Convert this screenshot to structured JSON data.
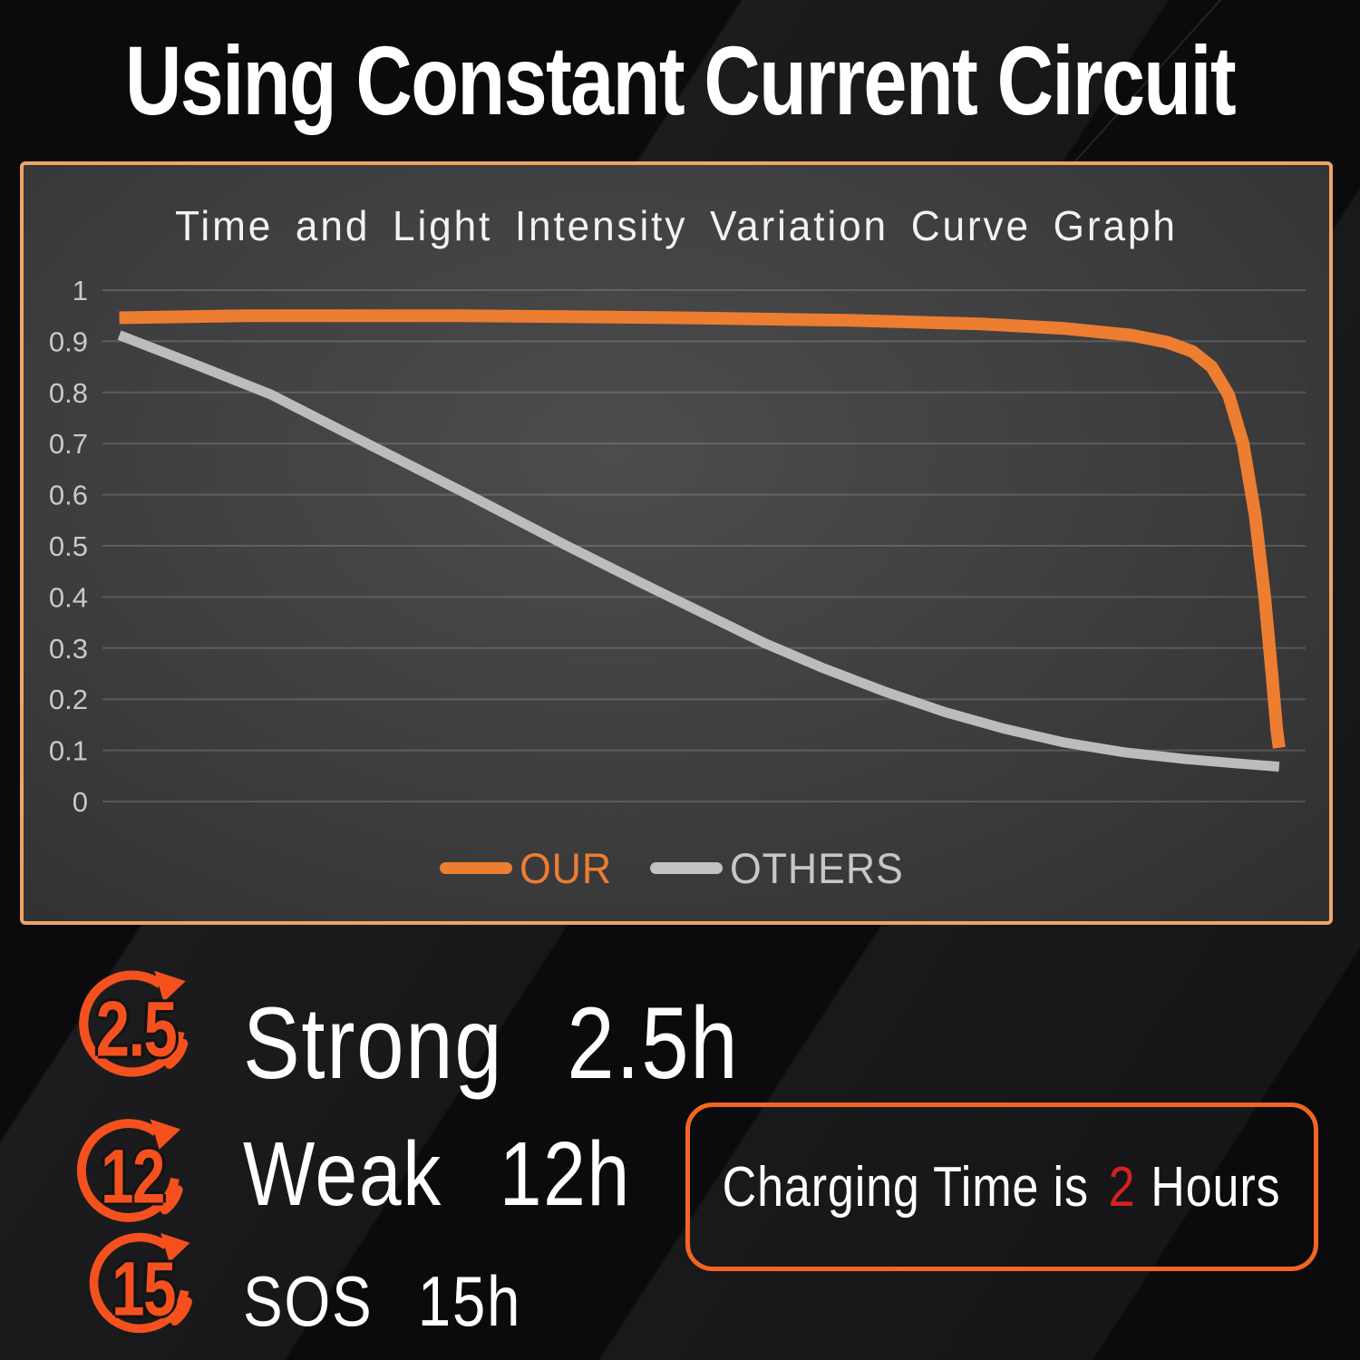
{
  "page": {
    "title": "Using Constant Current Circuit"
  },
  "chart": {
    "title": "Time and Light Intensity Variation Curve Graph",
    "legend": [
      {
        "label": "OUR",
        "color": "#ed7d31"
      },
      {
        "label": "OTHERS",
        "color": "#c2c2c2"
      }
    ]
  },
  "chart_data": {
    "type": "line",
    "title": "Time and Light Intensity Variation Curve Graph",
    "xlabel": "",
    "ylabel": "",
    "ylim": [
      0,
      1
    ],
    "yticks": [
      "1",
      "0.9",
      "0.8",
      "0.7",
      "0.6",
      "0.5",
      "0.4",
      "0.3",
      "0.2",
      "0.1",
      "0"
    ],
    "ytick_values": [
      1,
      0.9,
      0.8,
      0.7,
      0.6,
      0.5,
      0.4,
      0.3,
      0.2,
      0.1,
      0
    ],
    "grid": true,
    "legend_position": "bottom",
    "x_axis_note": "time axis unlabeled; x given as fraction 0-1 of run time",
    "series": [
      {
        "name": "OUR",
        "color": "#ed7d31",
        "line_width": 14,
        "points": [
          [
            0.014,
            0.946
          ],
          [
            0.12,
            0.95
          ],
          [
            0.3,
            0.95
          ],
          [
            0.48,
            0.946
          ],
          [
            0.62,
            0.941
          ],
          [
            0.73,
            0.934
          ],
          [
            0.8,
            0.925
          ],
          [
            0.855,
            0.912
          ],
          [
            0.885,
            0.898
          ],
          [
            0.906,
            0.88
          ],
          [
            0.922,
            0.85
          ],
          [
            0.936,
            0.795
          ],
          [
            0.948,
            0.7
          ],
          [
            0.958,
            0.56
          ],
          [
            0.966,
            0.4
          ],
          [
            0.972,
            0.25
          ],
          [
            0.976,
            0.14
          ],
          [
            0.978,
            0.105
          ]
        ]
      },
      {
        "name": "OTHERS",
        "color": "#bcbcbc",
        "line_width": 11,
        "points": [
          [
            0.014,
            0.912
          ],
          [
            0.08,
            0.852
          ],
          [
            0.14,
            0.796
          ],
          [
            0.22,
            0.7
          ],
          [
            0.3,
            0.605
          ],
          [
            0.386,
            0.5
          ],
          [
            0.45,
            0.425
          ],
          [
            0.51,
            0.356
          ],
          [
            0.55,
            0.31
          ],
          [
            0.6,
            0.26
          ],
          [
            0.65,
            0.215
          ],
          [
            0.7,
            0.175
          ],
          [
            0.75,
            0.142
          ],
          [
            0.8,
            0.115
          ],
          [
            0.85,
            0.096
          ],
          [
            0.9,
            0.083
          ],
          [
            0.94,
            0.075
          ],
          [
            0.978,
            0.068
          ]
        ]
      }
    ]
  },
  "features": [
    {
      "icon": "circular-arrow",
      "icon_value": "2.5",
      "label": "Strong 2.5h"
    },
    {
      "icon": "circular-arrow",
      "icon_value": "12",
      "label": "Weak 12h"
    },
    {
      "icon": "circular-arrow",
      "icon_value": "15",
      "label": "SOS 15h"
    }
  ],
  "charging_note": {
    "prefix": "Charging Time is",
    "highlight": "2",
    "suffix": "Hours"
  },
  "colors": {
    "accent_orange": "#ed7d31",
    "panel_border": "#f0a466",
    "icon_orange": "#f4511e",
    "note_border": "#f26522",
    "highlight_red": "#d42222",
    "line_gray": "#bcbcbc",
    "page_bg": "#0b0b0d",
    "title_white": "#ffffff",
    "tick_label": "#c9c9c9",
    "grid_line": "rgba(255,255,255,0.16)"
  }
}
